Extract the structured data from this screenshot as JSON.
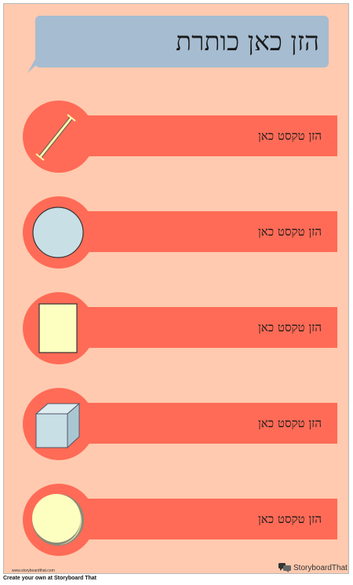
{
  "title": "הזן כאן כותרת",
  "rows": [
    {
      "shape": "line-segment-icon",
      "text": "הזן טקסט כאן"
    },
    {
      "shape": "circle-icon",
      "text": "הזן טקסט כאן"
    },
    {
      "shape": "rectangle-icon",
      "text": "הזן טקסט כאן"
    },
    {
      "shape": "cube-icon",
      "text": "הזן טקסט כאן"
    },
    {
      "shape": "sphere-icon",
      "text": "הזן טקסט כאן"
    }
  ],
  "footer": {
    "url": "www.storyboardthat.com",
    "logo_text": "StoryboardThat",
    "caption": "Create your own at Storyboard That"
  },
  "colors": {
    "background": "#ffcaaf",
    "band": "#ff6b57",
    "title_bubble": "#a6bcd1"
  }
}
